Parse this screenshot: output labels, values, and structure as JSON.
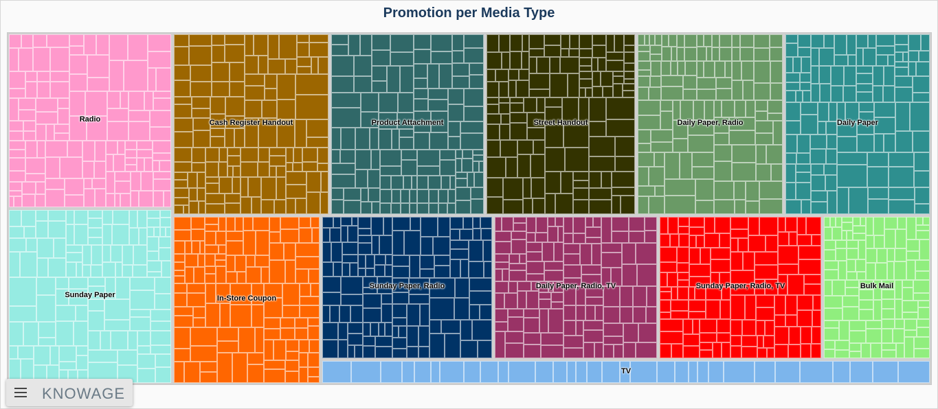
{
  "chart_data": {
    "type": "treemap",
    "title": "Promotion per Media Type",
    "groups": [
      {
        "name": "Radio",
        "color": "#ff99cc"
      },
      {
        "name": "Cash Register Handout",
        "color": "#9c6600"
      },
      {
        "name": "Product Attachment",
        "color": "#306868"
      },
      {
        "name": "Street Handout",
        "color": "#333300"
      },
      {
        "name": "Daily Paper, Radio",
        "color": "#6a9a66"
      },
      {
        "name": "Daily Paper",
        "color": "#2e8f8f"
      },
      {
        "name": "Sunday Paper",
        "color": "#96ebe2"
      },
      {
        "name": "In-Store Coupon",
        "color": "#ff6600"
      },
      {
        "name": "Sunday Paper, Radio",
        "color": "#003366"
      },
      {
        "name": "Daily Paper, Radio, TV",
        "color": "#993366"
      },
      {
        "name": "Sunday Paper, Radio, TV",
        "color": "#ff0000"
      },
      {
        "name": "Bulk Mail",
        "color": "#90ee7e"
      },
      {
        "name": "TV",
        "color": "#7cb5ec"
      }
    ]
  },
  "footer": {
    "brand": "KNOWAGE",
    "menu_icon": "hamburger-menu-icon"
  }
}
